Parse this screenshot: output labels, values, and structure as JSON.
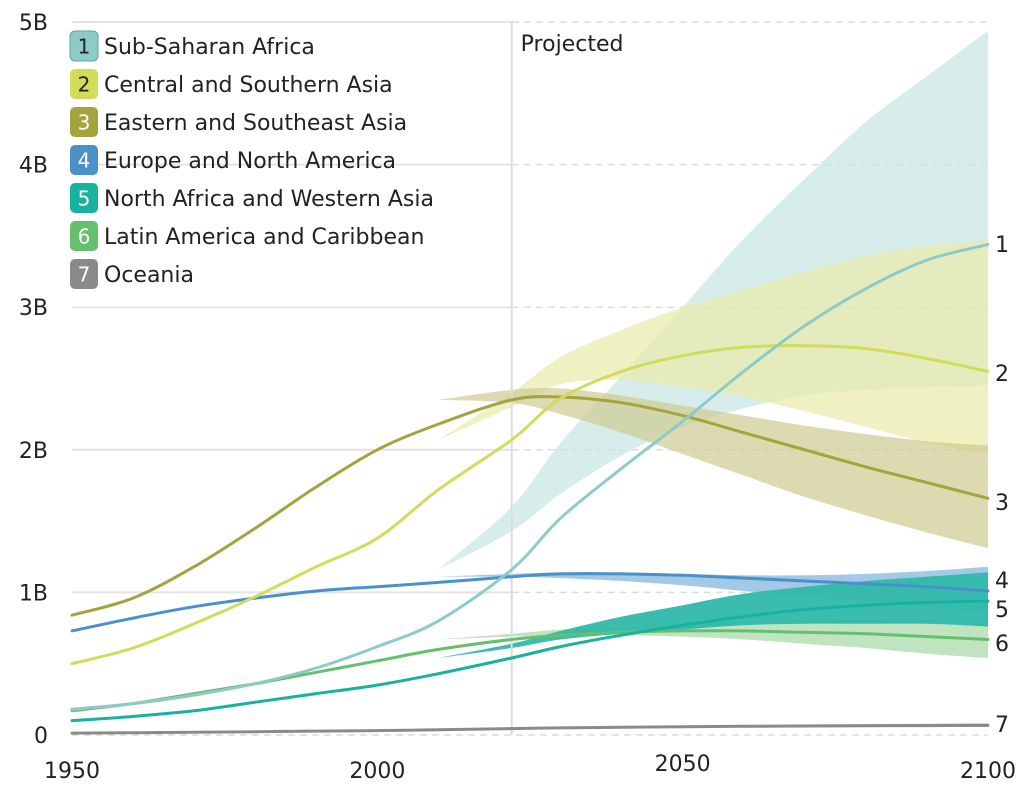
{
  "chart_data": {
    "type": "line",
    "title": "",
    "xlabel": "",
    "ylabel": "",
    "xlim": [
      1950,
      2100
    ],
    "ylim": [
      0,
      5
    ],
    "x_ticks": [
      "1950",
      "2000",
      "2050",
      "2100"
    ],
    "y_ticks": [
      "0",
      "1B",
      "2B",
      "3B",
      "4B",
      "5B"
    ],
    "grid": "horizontal dashed in projection region",
    "projection": {
      "start_year": 2022,
      "label": "Projected"
    },
    "legend_placement": "top-left",
    "series": [
      {
        "id": "1",
        "name": "Sub-Saharan Africa",
        "color": "#8ecbc8",
        "band_color": "#c7e6e4",
        "x": [
          1950,
          1960,
          1970,
          1980,
          1990,
          2000,
          2010,
          2022,
          2030,
          2040,
          2050,
          2060,
          2070,
          2080,
          2090,
          2100
        ],
        "y": [
          0.18,
          0.22,
          0.28,
          0.36,
          0.47,
          0.62,
          0.8,
          1.16,
          1.52,
          1.87,
          2.2,
          2.55,
          2.87,
          3.13,
          3.33,
          3.44
        ],
        "band_low": [
          1.16,
          1.43,
          1.69,
          1.96,
          2.16,
          2.29,
          2.38,
          2.42,
          2.44,
          2.45
        ],
        "band_high": [
          1.16,
          1.6,
          2.05,
          2.52,
          3.0,
          3.48,
          3.9,
          4.3,
          4.62,
          4.94
        ],
        "end_label": "1"
      },
      {
        "id": "2",
        "name": "Central and Southern Asia",
        "color": "#d2dc5a",
        "band_color": "#e9ecaa",
        "x": [
          1950,
          1960,
          1970,
          1980,
          1990,
          2000,
          2010,
          2022,
          2030,
          2040,
          2050,
          2060,
          2070,
          2080,
          2090,
          2100
        ],
        "y": [
          0.5,
          0.61,
          0.78,
          0.97,
          1.18,
          1.38,
          1.72,
          2.07,
          2.36,
          2.55,
          2.66,
          2.72,
          2.73,
          2.71,
          2.64,
          2.55
        ],
        "band_low": [
          2.07,
          2.3,
          2.46,
          2.49,
          2.44,
          2.37,
          2.27,
          2.16,
          2.05,
          1.97
        ],
        "band_high": [
          2.07,
          2.4,
          2.65,
          2.84,
          3.0,
          3.12,
          3.25,
          3.36,
          3.43,
          3.47
        ],
        "end_label": "2"
      },
      {
        "id": "3",
        "name": "Eastern and Southeast Asia",
        "color": "#a3a53c",
        "band_color": "#cdcc91",
        "x": [
          1950,
          1960,
          1970,
          1980,
          1990,
          2000,
          2010,
          2022,
          2030,
          2040,
          2050,
          2060,
          2070,
          2080,
          2090,
          2100
        ],
        "y": [
          0.84,
          0.96,
          1.18,
          1.45,
          1.74,
          2.0,
          2.18,
          2.35,
          2.37,
          2.33,
          2.24,
          2.12,
          2.0,
          1.88,
          1.77,
          1.66
        ],
        "band_low": [
          2.35,
          2.33,
          2.25,
          2.12,
          1.97,
          1.82,
          1.67,
          1.54,
          1.42,
          1.31
        ],
        "band_high": [
          2.35,
          2.42,
          2.43,
          2.38,
          2.31,
          2.24,
          2.17,
          2.11,
          2.06,
          2.03
        ],
        "end_label": "3"
      },
      {
        "id": "4",
        "name": "Europe and North America",
        "color": "#4a91c9",
        "band_color": "#7fb4dd",
        "x": [
          1950,
          1960,
          1970,
          1980,
          1990,
          2000,
          2010,
          2022,
          2030,
          2040,
          2050,
          2060,
          2070,
          2080,
          2090,
          2100
        ],
        "y": [
          0.73,
          0.82,
          0.9,
          0.96,
          1.01,
          1.04,
          1.07,
          1.11,
          1.13,
          1.13,
          1.12,
          1.1,
          1.08,
          1.06,
          1.04,
          1.01
        ],
        "band_low": [
          1.11,
          1.11,
          1.1,
          1.08,
          1.05,
          1.01,
          0.97,
          0.94,
          0.9,
          0.86
        ],
        "band_high": [
          1.11,
          1.13,
          1.14,
          1.14,
          1.13,
          1.12,
          1.12,
          1.13,
          1.15,
          1.18
        ],
        "end_label": "4"
      },
      {
        "id": "5",
        "name": "North Africa and Western Asia",
        "color": "#18b2a0",
        "band_color": "#2fb9aa",
        "x": [
          1950,
          1960,
          1970,
          1980,
          1990,
          2000,
          2010,
          2022,
          2030,
          2040,
          2050,
          2060,
          2070,
          2080,
          2090,
          2100
        ],
        "y": [
          0.1,
          0.13,
          0.17,
          0.23,
          0.29,
          0.35,
          0.43,
          0.54,
          0.62,
          0.7,
          0.77,
          0.83,
          0.88,
          0.91,
          0.93,
          0.94
        ],
        "band_low": [
          0.54,
          0.61,
          0.67,
          0.71,
          0.74,
          0.77,
          0.78,
          0.78,
          0.78,
          0.76
        ],
        "band_high": [
          0.54,
          0.64,
          0.73,
          0.83,
          0.91,
          0.99,
          1.04,
          1.08,
          1.11,
          1.14
        ],
        "end_label": "5"
      },
      {
        "id": "6",
        "name": "Latin America and Caribbean",
        "color": "#66bf6f",
        "band_color": "#a8d9a8",
        "x": [
          1950,
          1960,
          1970,
          1980,
          1990,
          2000,
          2010,
          2022,
          2030,
          2040,
          2050,
          2060,
          2070,
          2080,
          2090,
          2100
        ],
        "y": [
          0.17,
          0.22,
          0.29,
          0.36,
          0.44,
          0.52,
          0.6,
          0.67,
          0.7,
          0.72,
          0.73,
          0.73,
          0.72,
          0.71,
          0.69,
          0.67
        ],
        "band_low": [
          0.67,
          0.69,
          0.7,
          0.7,
          0.69,
          0.67,
          0.64,
          0.61,
          0.57,
          0.54
        ],
        "band_high": [
          0.67,
          0.71,
          0.74,
          0.76,
          0.78,
          0.8,
          0.81,
          0.81,
          0.81,
          0.8
        ],
        "end_label": "6"
      },
      {
        "id": "7",
        "name": "Oceania",
        "color": "#8a8a8a",
        "band_color": "#bdbdbd",
        "x": [
          1950,
          1960,
          1970,
          1980,
          1990,
          2000,
          2010,
          2022,
          2030,
          2040,
          2050,
          2060,
          2070,
          2080,
          2090,
          2100
        ],
        "y": [
          0.013,
          0.016,
          0.019,
          0.023,
          0.027,
          0.031,
          0.037,
          0.045,
          0.05,
          0.054,
          0.058,
          0.061,
          0.063,
          0.065,
          0.066,
          0.067
        ],
        "band_low": [
          0.045,
          0.049,
          0.052,
          0.055,
          0.057,
          0.058,
          0.058,
          0.058,
          0.057,
          0.056
        ],
        "band_high": [
          0.045,
          0.051,
          0.056,
          0.061,
          0.066,
          0.07,
          0.074,
          0.077,
          0.08,
          0.083
        ],
        "end_label": "7"
      }
    ]
  }
}
